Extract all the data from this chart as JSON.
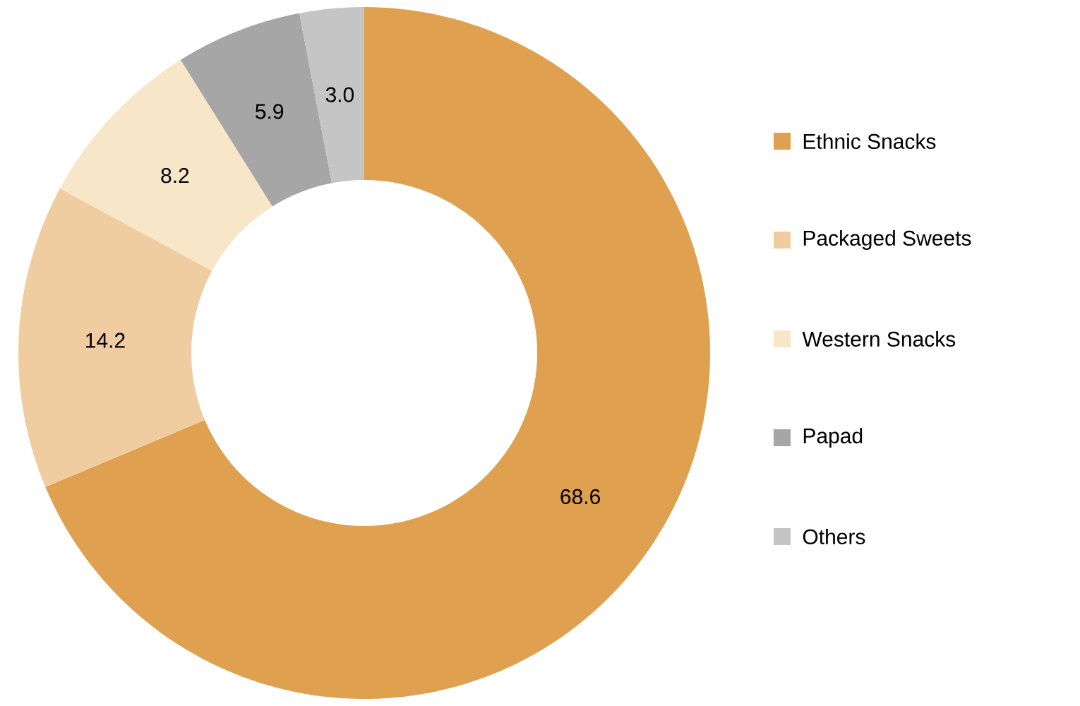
{
  "chart_data": {
    "type": "donut",
    "categories": [
      "Ethnic Snacks",
      "Packaged Sweets",
      "Western Snacks",
      "Papad",
      "Others"
    ],
    "values": [
      68.6,
      14.2,
      8.2,
      5.9,
      3.0
    ],
    "colors": [
      "#dfa04f",
      "#efcda0",
      "#f8e6c8",
      "#a6a6a6",
      "#c5c5c5"
    ],
    "value_labels": [
      "68.6",
      "14.2",
      "8.2",
      "5.9",
      "3.0"
    ],
    "legend": "right"
  }
}
